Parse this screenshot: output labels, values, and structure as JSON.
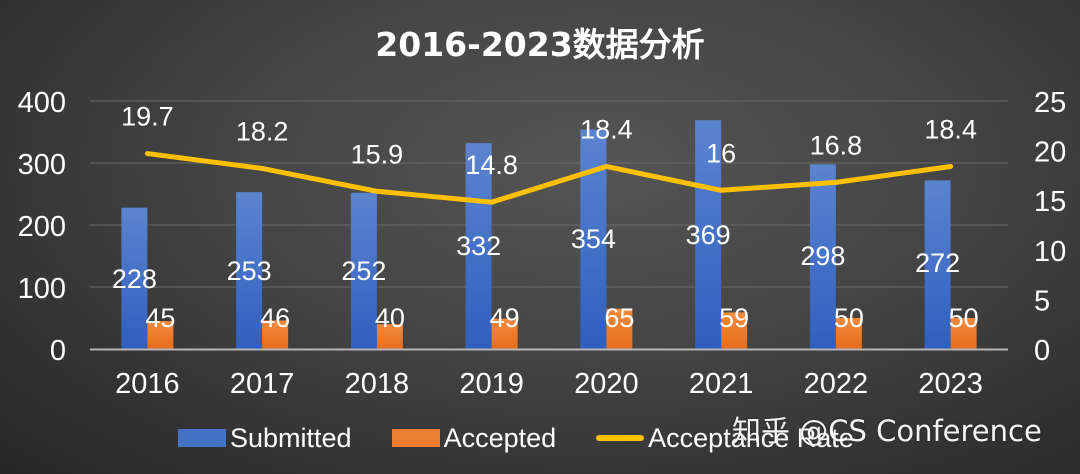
{
  "chart_data": {
    "type": "bar",
    "title": "2016-2023数据分析",
    "categories": [
      "2016",
      "2017",
      "2018",
      "2019",
      "2020",
      "2021",
      "2022",
      "2023"
    ],
    "series": [
      {
        "name": "Submitted",
        "type": "bar",
        "axis": "left",
        "color": "#4472C4",
        "values": [
          228,
          253,
          252,
          332,
          354,
          369,
          298,
          272
        ]
      },
      {
        "name": "Accepted",
        "type": "bar",
        "axis": "left",
        "color": "#ED7D31",
        "values": [
          45,
          46,
          40,
          49,
          65,
          59,
          50,
          50
        ]
      },
      {
        "name": "Acceptance Rate",
        "type": "line",
        "axis": "right",
        "color": "#FFC000",
        "values": [
          19.7,
          18.2,
          15.9,
          14.8,
          18.4,
          16,
          16.8,
          18.4
        ]
      }
    ],
    "xlabel": "",
    "ylabel": "",
    "ylim": [
      0,
      400
    ],
    "yticks": [
      0,
      100,
      200,
      300,
      400
    ],
    "y2lim": [
      0,
      25
    ],
    "y2ticks": [
      0,
      5,
      10,
      15,
      20,
      25
    ],
    "grid": true,
    "legend_position": "bottom"
  },
  "legend": {
    "items": [
      {
        "label": "Submitted",
        "color": "#4472C4",
        "kind": "bar"
      },
      {
        "label": "Accepted",
        "color": "#ED7D31",
        "kind": "bar"
      },
      {
        "label": "Acceptance Rate",
        "color": "#FFC000",
        "kind": "line"
      }
    ]
  },
  "watermark": "知乎 @CS Conference"
}
